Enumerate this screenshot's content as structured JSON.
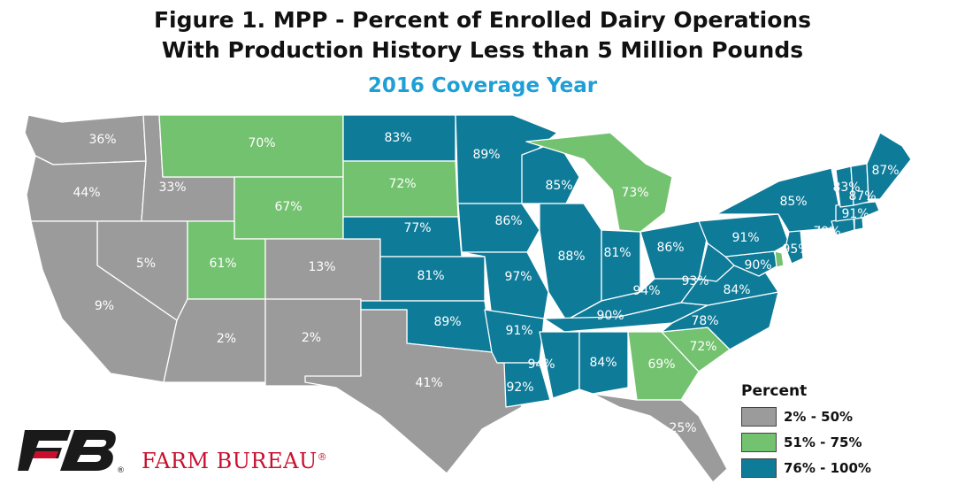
{
  "title": {
    "line1": "Figure 1. MPP - Percent of Enrolled Dairy Operations",
    "line2": "With Production History Less than 5 Million Pounds",
    "subtitle": "2016 Coverage Year"
  },
  "colors": {
    "low": "#9b9b9b",
    "mid": "#73c26f",
    "high": "#0e7b99",
    "subtitle": "#1e9fd6",
    "brand": "#c8102e"
  },
  "legend": {
    "title": "Percent",
    "items": [
      {
        "label": "2% - 50%",
        "bin": "low"
      },
      {
        "label": "51% - 75%",
        "bin": "mid"
      },
      {
        "label": "76% - 100%",
        "bin": "high"
      }
    ]
  },
  "states": [
    {
      "id": "WA",
      "value": "36%",
      "bin": "low"
    },
    {
      "id": "OR",
      "value": "44%",
      "bin": "low"
    },
    {
      "id": "ID",
      "value": "33%",
      "bin": "low"
    },
    {
      "id": "MT",
      "value": "70%",
      "bin": "mid"
    },
    {
      "id": "WY",
      "value": "67%",
      "bin": "mid"
    },
    {
      "id": "NV",
      "value": "5%",
      "bin": "low"
    },
    {
      "id": "CA",
      "value": "9%",
      "bin": "low"
    },
    {
      "id": "UT",
      "value": "61%",
      "bin": "mid"
    },
    {
      "id": "CO",
      "value": "13%",
      "bin": "low"
    },
    {
      "id": "AZ",
      "value": "2%",
      "bin": "low"
    },
    {
      "id": "NM",
      "value": "2%",
      "bin": "low"
    },
    {
      "id": "ND",
      "value": "83%",
      "bin": "high"
    },
    {
      "id": "SD",
      "value": "72%",
      "bin": "mid"
    },
    {
      "id": "NE",
      "value": "77%",
      "bin": "high"
    },
    {
      "id": "KS",
      "value": "81%",
      "bin": "high"
    },
    {
      "id": "OK",
      "value": "89%",
      "bin": "high"
    },
    {
      "id": "TX",
      "value": "41%",
      "bin": "low"
    },
    {
      "id": "MN",
      "value": "89%",
      "bin": "high"
    },
    {
      "id": "IA",
      "value": "86%",
      "bin": "high"
    },
    {
      "id": "MO",
      "value": "97%",
      "bin": "high"
    },
    {
      "id": "AR",
      "value": "91%",
      "bin": "high"
    },
    {
      "id": "LA",
      "value": "92%",
      "bin": "high"
    },
    {
      "id": "WI",
      "value": "85%",
      "bin": "high"
    },
    {
      "id": "IL",
      "value": "88%",
      "bin": "high"
    },
    {
      "id": "MI",
      "value": "73%",
      "bin": "mid"
    },
    {
      "id": "IN",
      "value": "81%",
      "bin": "high"
    },
    {
      "id": "OH",
      "value": "86%",
      "bin": "high"
    },
    {
      "id": "KY",
      "value": "94%",
      "bin": "high"
    },
    {
      "id": "TN",
      "value": "90%",
      "bin": "high"
    },
    {
      "id": "MS",
      "value": "94%",
      "bin": "high"
    },
    {
      "id": "AL",
      "value": "84%",
      "bin": "high"
    },
    {
      "id": "GA",
      "value": "69%",
      "bin": "mid"
    },
    {
      "id": "FL",
      "value": "25%",
      "bin": "low"
    },
    {
      "id": "SC",
      "value": "72%",
      "bin": "mid"
    },
    {
      "id": "NC",
      "value": "78%",
      "bin": "high"
    },
    {
      "id": "VA",
      "value": "84%",
      "bin": "high"
    },
    {
      "id": "WV",
      "value": "93%",
      "bin": "high"
    },
    {
      "id": "MD",
      "value": "90%",
      "bin": "high"
    },
    {
      "id": "DE",
      "value": "",
      "bin": "mid"
    },
    {
      "id": "PA",
      "value": "91%",
      "bin": "high"
    },
    {
      "id": "NJ",
      "value": "95%",
      "bin": "high"
    },
    {
      "id": "NY",
      "value": "85%",
      "bin": "high"
    },
    {
      "id": "CT",
      "value": "79%",
      "bin": "high"
    },
    {
      "id": "RI",
      "value": "",
      "bin": "high"
    },
    {
      "id": "MA",
      "value": "91%",
      "bin": "high"
    },
    {
      "id": "VT",
      "value": "83%",
      "bin": "high"
    },
    {
      "id": "NH",
      "value": "87%",
      "bin": "high"
    },
    {
      "id": "ME",
      "value": "87%",
      "bin": "high"
    }
  ],
  "brand": {
    "name": "FARM BUREAU",
    "registered": "®",
    "logo_mark": "FB"
  }
}
